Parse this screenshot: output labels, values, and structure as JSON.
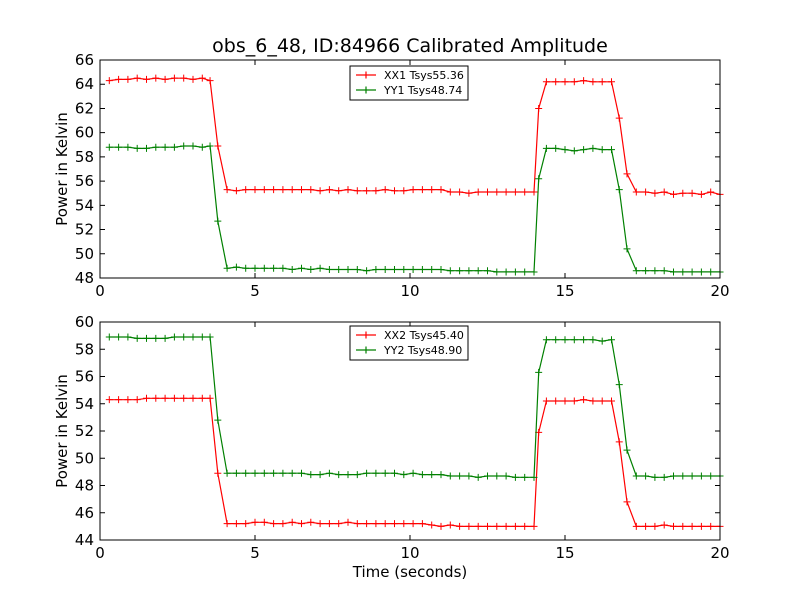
{
  "chart_data": [
    {
      "type": "line",
      "title": "obs_6_48, ID:84966 Calibrated Amplitude",
      "xlabel": "",
      "ylabel": "Power in Kelvin",
      "xlim": [
        0,
        20
      ],
      "ylim": [
        48,
        66
      ],
      "xticks": [
        0,
        5,
        10,
        15,
        20
      ],
      "yticks": [
        48,
        50,
        52,
        54,
        56,
        58,
        60,
        62,
        64,
        66
      ],
      "legend_position": "upper-center",
      "x": [
        0.3,
        0.6,
        0.9,
        1.2,
        1.5,
        1.8,
        2.1,
        2.4,
        2.7,
        3.0,
        3.3,
        3.55,
        3.8,
        4.1,
        4.4,
        4.7,
        5.0,
        5.3,
        5.6,
        5.9,
        6.2,
        6.5,
        6.8,
        7.1,
        7.4,
        7.7,
        8.0,
        8.3,
        8.6,
        8.9,
        9.2,
        9.5,
        9.8,
        10.1,
        10.4,
        10.7,
        11.0,
        11.3,
        11.6,
        11.9,
        12.2,
        12.5,
        12.8,
        13.1,
        13.4,
        13.7,
        14.0,
        14.15,
        14.4,
        14.7,
        15.0,
        15.3,
        15.6,
        15.9,
        16.2,
        16.5,
        16.75,
        17.0,
        17.3,
        17.6,
        17.9,
        18.2,
        18.5,
        18.8,
        19.1,
        19.4,
        19.7,
        20.0
      ],
      "series": [
        {
          "name": "XX1 Tsys55.36",
          "color": "#ff0000",
          "values": [
            64.3,
            64.4,
            64.4,
            64.5,
            64.4,
            64.5,
            64.4,
            64.5,
            64.5,
            64.4,
            64.5,
            64.3,
            58.9,
            55.3,
            55.2,
            55.3,
            55.3,
            55.3,
            55.3,
            55.3,
            55.3,
            55.3,
            55.3,
            55.2,
            55.3,
            55.2,
            55.3,
            55.2,
            55.2,
            55.2,
            55.3,
            55.2,
            55.2,
            55.3,
            55.3,
            55.3,
            55.3,
            55.1,
            55.1,
            55.0,
            55.1,
            55.1,
            55.1,
            55.1,
            55.1,
            55.1,
            55.1,
            62.0,
            64.2,
            64.2,
            64.2,
            64.2,
            64.3,
            64.2,
            64.2,
            64.2,
            61.2,
            56.6,
            55.1,
            55.1,
            55.0,
            55.1,
            54.9,
            55.0,
            55.0,
            54.9,
            55.1,
            54.9
          ]
        },
        {
          "name": "YY1 Tsys48.74",
          "color": "#008000",
          "values": [
            58.8,
            58.8,
            58.8,
            58.7,
            58.7,
            58.8,
            58.8,
            58.8,
            58.9,
            58.9,
            58.8,
            58.9,
            52.7,
            48.8,
            48.9,
            48.8,
            48.8,
            48.8,
            48.8,
            48.8,
            48.7,
            48.8,
            48.7,
            48.8,
            48.7,
            48.7,
            48.7,
            48.7,
            48.6,
            48.7,
            48.7,
            48.7,
            48.7,
            48.7,
            48.7,
            48.7,
            48.7,
            48.6,
            48.6,
            48.6,
            48.6,
            48.6,
            48.5,
            48.5,
            48.5,
            48.5,
            48.5,
            56.2,
            58.7,
            58.7,
            58.6,
            58.5,
            58.6,
            58.7,
            58.6,
            58.6,
            55.3,
            50.4,
            48.6,
            48.6,
            48.6,
            48.6,
            48.5,
            48.5,
            48.5,
            48.5,
            48.5,
            48.5
          ]
        }
      ]
    },
    {
      "type": "line",
      "title": "",
      "xlabel": "Time (seconds)",
      "ylabel": "Power in Kelvin",
      "xlim": [
        0,
        20
      ],
      "ylim": [
        44,
        60
      ],
      "xticks": [
        0,
        5,
        10,
        15,
        20
      ],
      "yticks": [
        44,
        46,
        48,
        50,
        52,
        54,
        56,
        58,
        60
      ],
      "legend_position": "upper-center",
      "x": [
        0.3,
        0.6,
        0.9,
        1.2,
        1.5,
        1.8,
        2.1,
        2.4,
        2.7,
        3.0,
        3.3,
        3.55,
        3.8,
        4.1,
        4.4,
        4.7,
        5.0,
        5.3,
        5.6,
        5.9,
        6.2,
        6.5,
        6.8,
        7.1,
        7.4,
        7.7,
        8.0,
        8.3,
        8.6,
        8.9,
        9.2,
        9.5,
        9.8,
        10.1,
        10.4,
        10.7,
        11.0,
        11.3,
        11.6,
        11.9,
        12.2,
        12.5,
        12.8,
        13.1,
        13.4,
        13.7,
        14.0,
        14.15,
        14.4,
        14.7,
        15.0,
        15.3,
        15.6,
        15.9,
        16.2,
        16.5,
        16.75,
        17.0,
        17.3,
        17.6,
        17.9,
        18.2,
        18.5,
        18.8,
        19.1,
        19.4,
        19.7,
        20.0
      ],
      "series": [
        {
          "name": "XX2 Tsys45.40",
          "color": "#ff0000",
          "values": [
            54.3,
            54.3,
            54.3,
            54.3,
            54.4,
            54.4,
            54.4,
            54.4,
            54.4,
            54.4,
            54.4,
            54.4,
            48.9,
            45.2,
            45.2,
            45.2,
            45.3,
            45.3,
            45.2,
            45.2,
            45.3,
            45.2,
            45.3,
            45.2,
            45.2,
            45.2,
            45.3,
            45.2,
            45.2,
            45.2,
            45.2,
            45.2,
            45.2,
            45.2,
            45.2,
            45.1,
            45.0,
            45.1,
            45.0,
            45.0,
            45.0,
            45.0,
            45.0,
            45.0,
            45.0,
            45.0,
            45.0,
            51.9,
            54.2,
            54.2,
            54.2,
            54.2,
            54.3,
            54.2,
            54.2,
            54.2,
            51.2,
            46.8,
            45.0,
            45.0,
            45.0,
            45.1,
            45.0,
            45.0,
            45.0,
            45.0,
            45.0,
            45.0
          ]
        },
        {
          "name": "YY2 Tsys48.90",
          "color": "#008000",
          "values": [
            58.9,
            58.9,
            58.9,
            58.8,
            58.8,
            58.8,
            58.8,
            58.9,
            58.9,
            58.9,
            58.9,
            58.9,
            52.8,
            48.9,
            48.9,
            48.9,
            48.9,
            48.9,
            48.9,
            48.9,
            48.9,
            48.9,
            48.8,
            48.8,
            48.9,
            48.8,
            48.8,
            48.8,
            48.9,
            48.9,
            48.9,
            48.9,
            48.8,
            48.9,
            48.8,
            48.8,
            48.8,
            48.7,
            48.7,
            48.7,
            48.6,
            48.7,
            48.7,
            48.7,
            48.6,
            48.6,
            48.6,
            56.3,
            58.7,
            58.7,
            58.7,
            58.7,
            58.7,
            58.7,
            58.6,
            58.7,
            55.4,
            50.6,
            48.7,
            48.7,
            48.6,
            48.6,
            48.7,
            48.7,
            48.7,
            48.7,
            48.7,
            48.7
          ]
        }
      ]
    }
  ]
}
